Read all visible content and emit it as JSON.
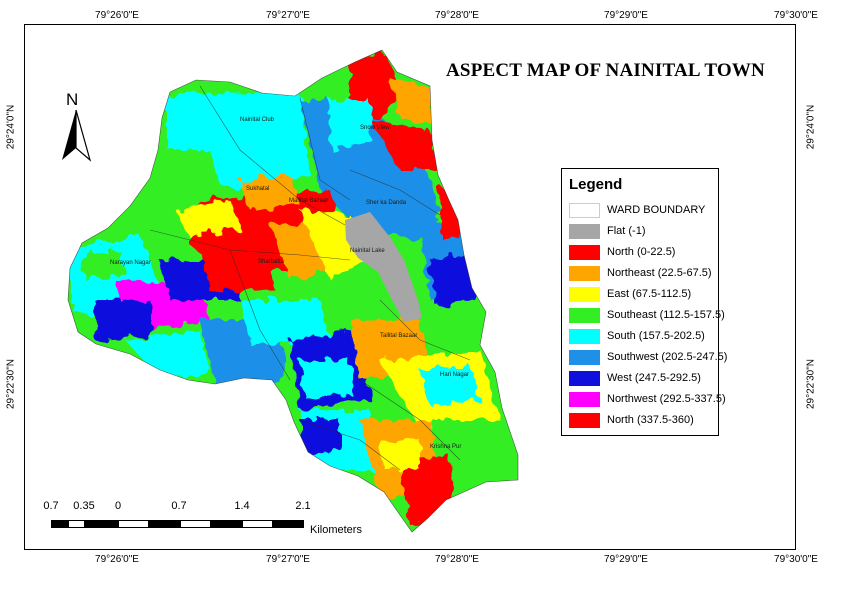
{
  "title": "ASPECT MAP OF NAINITAL TOWN",
  "north_arrow": {
    "letter": "N"
  },
  "graticule": {
    "top": [
      "79°26'0\"E",
      "79°27'0\"E",
      "79°28'0\"E",
      "79°29'0\"E",
      "79°30'0\"E"
    ],
    "bottom": [
      "79°26'0\"E",
      "79°27'0\"E",
      "79°28'0\"E",
      "79°29'0\"E",
      "79°30'0\"E"
    ],
    "left": [
      "29°24'0\"N",
      "29°22'30\"N"
    ],
    "right": [
      "29°24'0\"N",
      "29°22'30\"N"
    ]
  },
  "legend": {
    "title": "Legend",
    "items": [
      {
        "label": "WARD BOUNDARY",
        "color": "#ffffff"
      },
      {
        "label": "Flat (-1)",
        "color": "#a6a6a6"
      },
      {
        "label": "North (0-22.5)",
        "color": "#ff0000"
      },
      {
        "label": "Northeast (22.5-67.5)",
        "color": "#ffa500"
      },
      {
        "label": "East (67.5-112.5)",
        "color": "#ffff00"
      },
      {
        "label": "Southeast (112.5-157.5)",
        "color": "#33ee22"
      },
      {
        "label": "South (157.5-202.5)",
        "color": "#00ffff"
      },
      {
        "label": "Southwest (202.5-247.5)",
        "color": "#1e90e8"
      },
      {
        "label": "West (247.5-292.5)",
        "color": "#1010dd"
      },
      {
        "label": "Northwest (292.5-337.5)",
        "color": "#ff00ff"
      },
      {
        "label": "North (337.5-360)",
        "color": "#ff0000"
      }
    ]
  },
  "scale_bar": {
    "labels": [
      "0.7",
      "0.35",
      "0",
      "0.7",
      "1.4",
      "2.1"
    ],
    "unit": "Kilometers"
  },
  "places": [
    "Nainital Club",
    "Snow View",
    "Sukhatal",
    "Mallital Bazaar",
    "Sher ka Danda",
    "Narayan Nagar",
    "Nainital Lake",
    "Sharbatta",
    "Tallital Bazaar",
    "Hari Nagar",
    "Krishna Pur"
  ]
}
